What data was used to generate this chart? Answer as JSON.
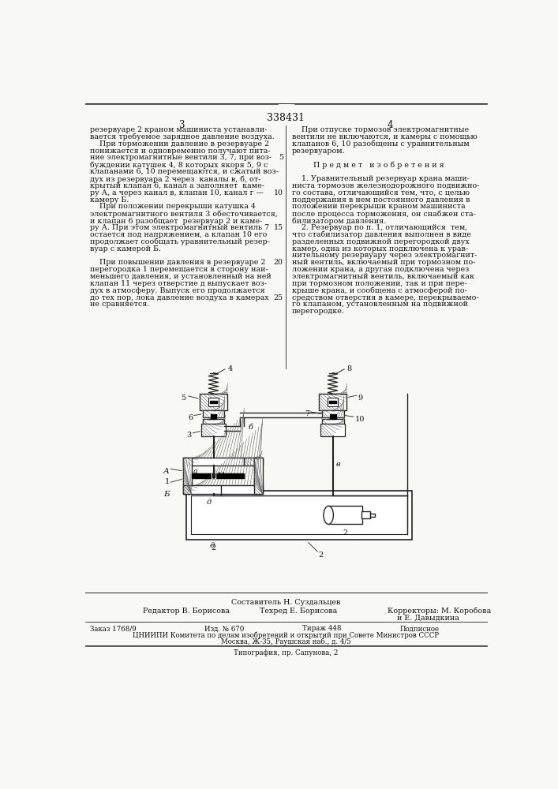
{
  "patent_number": "338431",
  "page_col1": "3",
  "page_col2": "4",
  "col1_lines": [
    "резервуаре 2 краном машиниста устанавли-",
    "вается требуемое зарядное давление воздуха.",
    "    При торможении давление в резервуаре 2",
    "понижается и одновременно получают пита-",
    "ние электромагнитные вентили 3, 7, при воз-",
    "буждении катушек 4, 8 которых якоря 5, 9 с",
    "клапанами 6, 10 перемещаются, и сжатый воз-",
    "дух из резервуара 2 через  каналы в, б, от-",
    "крытый клапан 6, канал а заполняет  каме-",
    "ру А, а через канал в, клапан 10, канал г —",
    "камеру Б.",
    "    При положении перекрыши катушка 4",
    "электромагнитного вентиля 3 обесточивается,",
    "и клапан 6 разобщает  резервуар 2 и каме-",
    "ру А. При этом электромагнитный вентиль 7",
    "остается под напряжением, а клапан 10 его",
    "продолжает сообщать уравнительный резер-",
    "вуар с камерой Б.",
    "",
    "    При повышении давления в резервуаре 2",
    "перегородка 1 перемещается в сторону наи-",
    "меньшего давления, и установленный на ней",
    "клапан 11 через отверстие д выпускает воз-",
    "дух в атмосферу. Выпуск его продолжается",
    "до тех пор, лока давление воздуха в камерах",
    "не сравняется."
  ],
  "col2_lines": [
    "    При отпуске тормозов электромагнитные",
    "вентили не включаются, и камеры с помощью",
    "клапанов 6, 10 разобщены с уравнительным",
    "резервуаром.",
    "",
    "         П р е д м е т   и з о б р е т е н и я",
    "",
    "    1. Уравнительный резервуар крана маши-",
    "ниста тормозов железнодорожного подвижно-",
    "го состава, отличающийся тем, что, с целью",
    "поддержания в нем постоянного давления в",
    "положении перекрыши краном машиниста",
    "после процесса торможения, он снабжен ста-",
    "билизатором давления.",
    "    2. Резервуар по п. 1, отличающийся  тем,",
    "что стабилизатор давления выполнен в виде",
    "разделенных подвижной перегородкой двух",
    "камер, одна из которых подключена к урав-",
    "нительному резервуару через электромагнит-",
    "ный вентиль, включаемый при тормозном по-",
    "ложении крана, а другая подключена через",
    "электромагнитный вентиль, включаемый как",
    "при тормозном положении, так и при пере-",
    "крыше крана, и сообщена с атмосферой по-",
    "средством отверстия в камере, перекрываемо-",
    "го клапаном, установленным на подвижной",
    "перегородке."
  ],
  "line_nums": {
    "4": "5",
    "9": "10",
    "14": "15",
    "19": "20",
    "24": "25"
  },
  "footer_composer": "Составитель Н. Суздальцев",
  "footer_editor": "Редактор В. Борисова",
  "footer_techred": "Техред Е. Борисова",
  "footer_corr1": "Корректоры: М. Коробова",
  "footer_corr2": "и Е. Давыдкина",
  "footer_order": "Заказ 1768/9",
  "footer_edition": "Изд. № 670",
  "footer_circ": "Тираж 448",
  "footer_sub": "Подписное",
  "footer_org": "ЦНИИПИ Комитета по делам изобретений и открытий при Совете Министров СССР",
  "footer_addr": "Москва, Ж-35, Раушская наб., д. 4/5",
  "footer_print": "Типография, пр. Сапунова, 2",
  "bg": "#f8f8f5",
  "tc": "#111111",
  "lc": "#222222",
  "hatch_c": "#666666"
}
